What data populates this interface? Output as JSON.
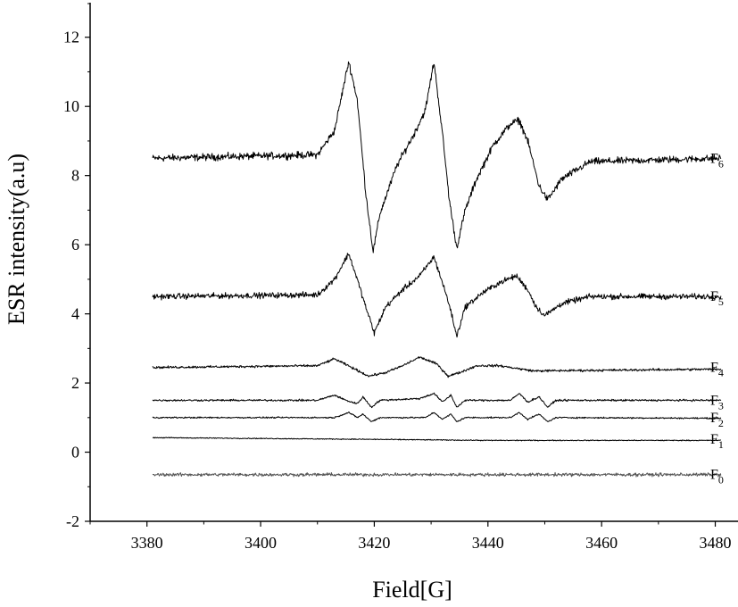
{
  "chart_data": {
    "type": "line",
    "xlabel": "Field[G]",
    "ylabel": "ESR intensity(a.u)",
    "xlim": [
      3370,
      3484
    ],
    "ylim": [
      -2,
      13
    ],
    "xticks": [
      3380,
      3400,
      3420,
      3440,
      3460,
      3480
    ],
    "yticks": [
      -2,
      0,
      2,
      4,
      6,
      8,
      10,
      12
    ],
    "grid": false,
    "legend": "none",
    "x_range": [
      3381,
      3481
    ],
    "series": [
      {
        "label_main": "F",
        "label_sub": "6",
        "baseline": 8.5,
        "noise": 0.15,
        "color": "#000000",
        "points": [
          [
            3381,
            8.5
          ],
          [
            3410,
            8.6
          ],
          [
            3413,
            9.3
          ],
          [
            3415.5,
            11.3
          ],
          [
            3417,
            10.2
          ],
          [
            3418.5,
            7.5
          ],
          [
            3419.8,
            5.8
          ],
          [
            3421,
            6.9
          ],
          [
            3424,
            8.3
          ],
          [
            3427,
            9.2
          ],
          [
            3429,
            9.9
          ],
          [
            3430.5,
            11.3
          ],
          [
            3432,
            9.2
          ],
          [
            3433.2,
            7.3
          ],
          [
            3434.5,
            5.9
          ],
          [
            3436,
            7.0
          ],
          [
            3438,
            7.9
          ],
          [
            3441,
            8.9
          ],
          [
            3444,
            9.5
          ],
          [
            3445.5,
            9.6
          ],
          [
            3447,
            9.0
          ],
          [
            3449,
            7.7
          ],
          [
            3450.5,
            7.3
          ],
          [
            3453,
            7.9
          ],
          [
            3458,
            8.4
          ],
          [
            3481,
            8.5
          ]
        ]
      },
      {
        "label_main": "F",
        "label_sub": "5",
        "baseline": 4.5,
        "noise": 0.12,
        "color": "#000000",
        "points": [
          [
            3381,
            4.5
          ],
          [
            3410,
            4.55
          ],
          [
            3413,
            5.0
          ],
          [
            3415.5,
            5.75
          ],
          [
            3417,
            5.0
          ],
          [
            3418.5,
            4.2
          ],
          [
            3420,
            3.45
          ],
          [
            3422,
            4.2
          ],
          [
            3425,
            4.7
          ],
          [
            3428,
            5.1
          ],
          [
            3430.5,
            5.65
          ],
          [
            3432,
            4.9
          ],
          [
            3433.3,
            4.2
          ],
          [
            3434.5,
            3.35
          ],
          [
            3436,
            4.2
          ],
          [
            3439,
            4.6
          ],
          [
            3442,
            4.9
          ],
          [
            3445,
            5.1
          ],
          [
            3447,
            4.7
          ],
          [
            3448.5,
            4.2
          ],
          [
            3450,
            3.95
          ],
          [
            3453,
            4.3
          ],
          [
            3458,
            4.5
          ],
          [
            3481,
            4.5
          ]
        ]
      },
      {
        "label_main": "F",
        "label_sub": "4",
        "baseline": 2.45,
        "noise": 0.05,
        "color": "#000000",
        "points": [
          [
            3381,
            2.45
          ],
          [
            3410,
            2.5
          ],
          [
            3413,
            2.7
          ],
          [
            3416,
            2.45
          ],
          [
            3419,
            2.2
          ],
          [
            3422,
            2.3
          ],
          [
            3425,
            2.5
          ],
          [
            3428,
            2.75
          ],
          [
            3431,
            2.55
          ],
          [
            3433,
            2.2
          ],
          [
            3435,
            2.3
          ],
          [
            3438,
            2.5
          ],
          [
            3442,
            2.5
          ],
          [
            3448,
            2.35
          ],
          [
            3481,
            2.4
          ]
        ]
      },
      {
        "label_main": "F",
        "label_sub": "3",
        "baseline": 1.5,
        "noise": 0.04,
        "color": "#000000",
        "points": [
          [
            3381,
            1.5
          ],
          [
            3410,
            1.5
          ],
          [
            3413,
            1.65
          ],
          [
            3415,
            1.5
          ],
          [
            3417,
            1.4
          ],
          [
            3418,
            1.6
          ],
          [
            3419.5,
            1.3
          ],
          [
            3421,
            1.5
          ],
          [
            3428,
            1.55
          ],
          [
            3430.5,
            1.7
          ],
          [
            3432,
            1.45
          ],
          [
            3433.5,
            1.65
          ],
          [
            3434.5,
            1.3
          ],
          [
            3436,
            1.5
          ],
          [
            3444,
            1.5
          ],
          [
            3445.5,
            1.7
          ],
          [
            3447,
            1.45
          ],
          [
            3449,
            1.6
          ],
          [
            3450.5,
            1.3
          ],
          [
            3452,
            1.5
          ],
          [
            3481,
            1.5
          ]
        ]
      },
      {
        "label_main": "F",
        "label_sub": "2",
        "baseline": 1.0,
        "noise": 0.03,
        "color": "#000000",
        "points": [
          [
            3381,
            1.0
          ],
          [
            3413,
            1.0
          ],
          [
            3415.5,
            1.15
          ],
          [
            3417,
            1.0
          ],
          [
            3418,
            1.1
          ],
          [
            3419.5,
            0.88
          ],
          [
            3421,
            1.0
          ],
          [
            3429,
            1.0
          ],
          [
            3430.5,
            1.15
          ],
          [
            3432,
            0.95
          ],
          [
            3433.5,
            1.1
          ],
          [
            3434.5,
            0.88
          ],
          [
            3436,
            1.0
          ],
          [
            3444,
            1.0
          ],
          [
            3445.5,
            1.15
          ],
          [
            3447,
            0.95
          ],
          [
            3449,
            1.1
          ],
          [
            3450.5,
            0.88
          ],
          [
            3452,
            1.0
          ],
          [
            3481,
            0.98
          ]
        ]
      },
      {
        "label_main": "F",
        "label_sub": "1",
        "baseline": 0.38,
        "noise": 0.02,
        "color": "#000000",
        "points": [
          [
            3381,
            0.42
          ],
          [
            3420,
            0.37
          ],
          [
            3440,
            0.34
          ],
          [
            3481,
            0.34
          ]
        ]
      },
      {
        "label_main": "F",
        "label_sub": "0",
        "baseline": -0.65,
        "noise": 0.07,
        "color": "#555555",
        "points": [
          [
            3381,
            -0.65
          ],
          [
            3481,
            -0.65
          ]
        ]
      }
    ]
  }
}
